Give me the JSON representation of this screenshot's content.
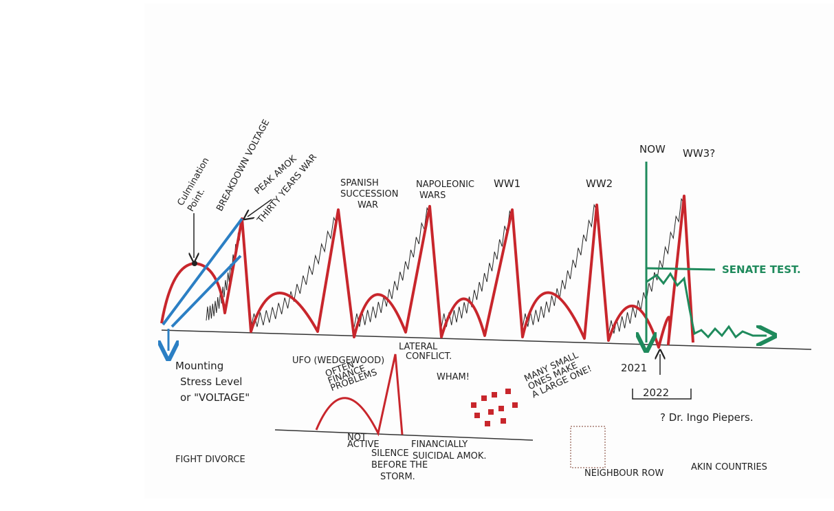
{
  "labels": {
    "culmination": [
      "Culmination",
      "Point."
    ],
    "breakdown": "BREAKDOWN VOLTAGE",
    "peak_amok": "PEAK AMOK",
    "thirty_years_war": "THIRTY YEARS WAR",
    "spanish": [
      "SPANISH",
      "SUCCESSION",
      "WAR"
    ],
    "napoleonic": [
      "NAPOLEONIC",
      "WARS"
    ],
    "ww1": "WW1",
    "ww2": "WW2",
    "now": "NOW",
    "ww3": "WW3?",
    "senate_test": "SENATE TEST.",
    "mounting": [
      "Mounting",
      "Stress Level",
      "or \"VOLTAGE\""
    ],
    "ufo": "UFO (WEDGEWOOD)",
    "finance": [
      "OFTEN",
      "FINANCE",
      "PROBLEMS"
    ],
    "lateral": [
      "LATERAL",
      "CONFLICT."
    ],
    "wham": "WHAM!",
    "many_small": [
      "MANY SMALL",
      "ONES MAKE",
      "A LARGE ONE!"
    ],
    "year_2021": "2021",
    "year_2022": "2022",
    "author": "? Dr. Ingo Piepers.",
    "not_active": [
      "NOT",
      "ACTIVE"
    ],
    "silence": [
      "SILENCE",
      "BEFORE THE",
      "STORM."
    ],
    "financial_amok": [
      "FINANCIALLY",
      "SUICIDAL AMOK."
    ],
    "fight_divorce": "FIGHT DIVORCE",
    "neighbour_row": "NEIGHBOUR ROW",
    "akin_countries": "AKIN COUNTRIES"
  }
}
